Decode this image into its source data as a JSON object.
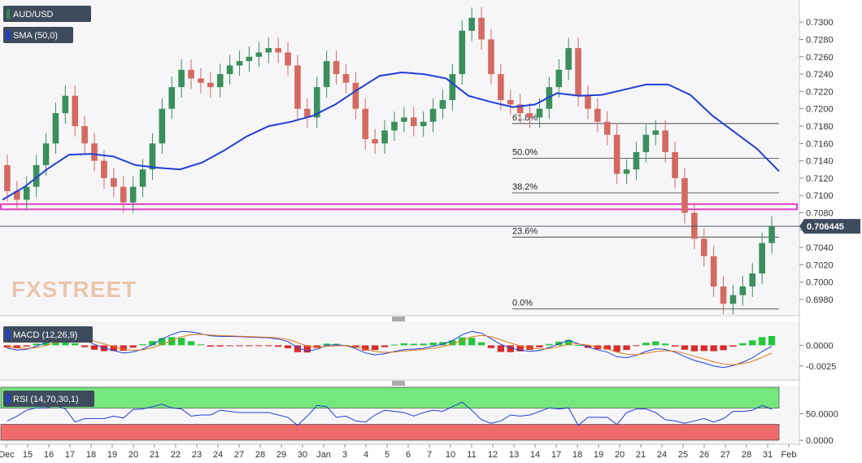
{
  "chart_data": {
    "type": "candlestick",
    "symbol": "AUD/USD",
    "indicator_sma_label": "SMA (50,0)",
    "last_price_label": "0.706445",
    "watermark": "FXSTREET",
    "price_ylim": [
      0.6965,
      0.7318
    ],
    "price_ticks": [
      "0.7300",
      "0.7280",
      "0.7260",
      "0.7240",
      "0.7220",
      "0.7200",
      "0.7180",
      "0.7160",
      "0.7140",
      "0.7120",
      "0.7100",
      "0.7080",
      "0.7060",
      "0.7040",
      "0.7020",
      "0.7000",
      "0.6980"
    ],
    "fibonacci": [
      {
        "label": "61.8%",
        "value": 0.7183
      },
      {
        "label": "50.0%",
        "value": 0.7143
      },
      {
        "label": "38.2%",
        "value": 0.7103
      },
      {
        "label": "23.6%",
        "value": 0.7052
      },
      {
        "label": "0.0%",
        "value": 0.6969
      }
    ],
    "support_zone": [
      0.7084,
      0.709
    ],
    "x_labels": [
      "Dec",
      "15",
      "16",
      "17",
      "18",
      "19",
      "20",
      "21",
      "22",
      "23",
      "24",
      "27",
      "28",
      "29",
      "30",
      "Jan",
      "3",
      "4",
      "5",
      "6",
      "7",
      "10",
      "11",
      "12",
      "13",
      "14",
      "17",
      "18",
      "19",
      "20",
      "21",
      "24",
      "25",
      "26",
      "27",
      "28",
      "31",
      "Feb"
    ],
    "price_path": [
      0.7135,
      0.7105,
      0.7095,
      0.711,
      0.7135,
      0.716,
      0.7195,
      0.7215,
      0.718,
      0.716,
      0.714,
      0.712,
      0.711,
      0.7092,
      0.711,
      0.713,
      0.716,
      0.72,
      0.7225,
      0.7245,
      0.7235,
      0.723,
      0.7225,
      0.724,
      0.725,
      0.7255,
      0.726,
      0.7265,
      0.727,
      0.7265,
      0.725,
      0.72,
      0.719,
      0.7225,
      0.7255,
      0.724,
      0.723,
      0.72,
      0.7165,
      0.716,
      0.7175,
      0.7185,
      0.719,
      0.718,
      0.7185,
      0.72,
      0.721,
      0.724,
      0.729,
      0.7305,
      0.728,
      0.724,
      0.721,
      0.7205,
      0.7195,
      0.719,
      0.72,
      0.7225,
      0.7245,
      0.727,
      0.7215,
      0.72,
      0.7185,
      0.717,
      0.7125,
      0.713,
      0.715,
      0.717,
      0.7175,
      0.715,
      0.712,
      0.708,
      0.705,
      0.703,
      0.6995,
      0.6975,
      0.6985,
      0.6995,
      0.701,
      0.7045,
      0.7064
    ],
    "sma_path": [
      0.7095,
      0.711,
      0.713,
      0.7147,
      0.7148,
      0.7145,
      0.7135,
      0.7132,
      0.713,
      0.7138,
      0.7152,
      0.7168,
      0.718,
      0.7185,
      0.7192,
      0.7205,
      0.7222,
      0.7238,
      0.7242,
      0.724,
      0.7235,
      0.7215,
      0.7208,
      0.7202,
      0.7205,
      0.7218,
      0.7215,
      0.7216,
      0.7222,
      0.7228,
      0.7228,
      0.7216,
      0.7192,
      0.7173,
      0.7154,
      0.7128
    ],
    "macd": {
      "label": "MACD (12,26,9)",
      "ylim": [
        -0.004,
        0.0026
      ],
      "ticks": [
        "0.0000",
        "-0.0025"
      ]
    },
    "rsi": {
      "label": "RSI (14,70,30,1)",
      "ylim": [
        0,
        100
      ],
      "ticks": [
        "50.0000",
        "0.0000"
      ]
    }
  },
  "colors": {
    "bull": "#3a8f5c",
    "bear": "#d46a62",
    "sma": "#1f3fd6",
    "support": "#e040c8",
    "macd_up": "#22c83a",
    "macd_down": "#d92a2a",
    "rsi_over": "#74e87c",
    "rsi_under": "#ef6b6b",
    "tag_bg": "#3d4b5c"
  }
}
